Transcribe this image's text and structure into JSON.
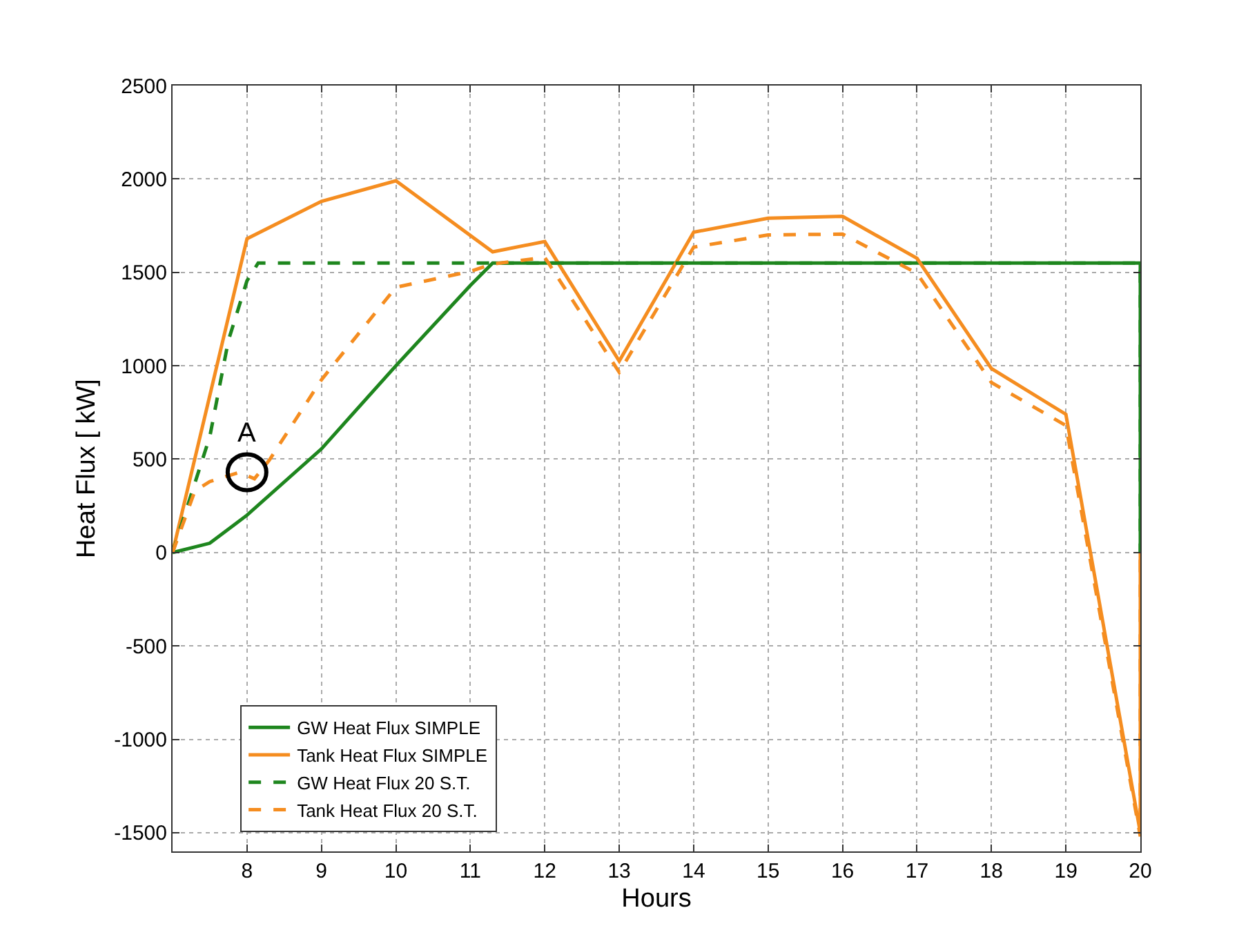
{
  "chart_data": {
    "type": "line",
    "xlabel": "Hours",
    "ylabel": "Heat Flux [ kW]",
    "xlim": [
      7,
      20
    ],
    "xticks": [
      8,
      9,
      10,
      11,
      12,
      13,
      14,
      15,
      16,
      17,
      18,
      19,
      20
    ],
    "ylim": [
      -1600,
      2500
    ],
    "yticks": [
      -1500,
      -1000,
      -500,
      0,
      500,
      1000,
      1500,
      2000,
      2500
    ],
    "grid": true,
    "legend": "bottom left",
    "marker": "none",
    "series": [
      {
        "name": "GW Heat Flux SIMPLE",
        "color": "#1e861e",
        "line_style": "solid",
        "x": [
          7,
          7.5,
          8,
          9,
          10,
          11,
          11.3,
          20,
          20
        ],
        "values": [
          0,
          50,
          200,
          555,
          1000,
          1430,
          1550,
          1550,
          0
        ]
      },
      {
        "name": "Tank Heat Flux SIMPLE",
        "color": "#f58d20",
        "line_style": "solid",
        "x": [
          7,
          8,
          9,
          10,
          11.3,
          12,
          13,
          14,
          15,
          16,
          17,
          18,
          19,
          20,
          20
        ],
        "values": [
          0,
          1680,
          1880,
          1990,
          1610,
          1665,
          1025,
          1715,
          1790,
          1800,
          1575,
          985,
          740,
          -1500,
          0
        ]
      },
      {
        "name": "GW Heat Flux 20 S.T.",
        "color": "#1e861e",
        "line_style": "dashed",
        "x": [
          7,
          7.5,
          7.75,
          8,
          8.15,
          20,
          20
        ],
        "values": [
          0,
          620,
          1135,
          1455,
          1550,
          1550,
          0
        ]
      },
      {
        "name": "Tank Heat Flux 20 S.T.",
        "color": "#f58d20",
        "line_style": "dashed",
        "x": [
          7,
          7.3,
          7.5,
          7.9,
          8.1,
          8.3,
          9,
          10,
          11,
          11.3,
          12,
          13,
          14,
          15,
          16,
          17,
          18,
          19,
          20,
          20
        ],
        "values": [
          0,
          330,
          380,
          430,
          395,
          495,
          925,
          1420,
          1505,
          1545,
          1580,
          965,
          1635,
          1700,
          1705,
          1495,
          910,
          680,
          -1520,
          0
        ]
      }
    ],
    "annotations": [
      {
        "text": "A",
        "x": 8,
        "y": 430
      }
    ]
  }
}
